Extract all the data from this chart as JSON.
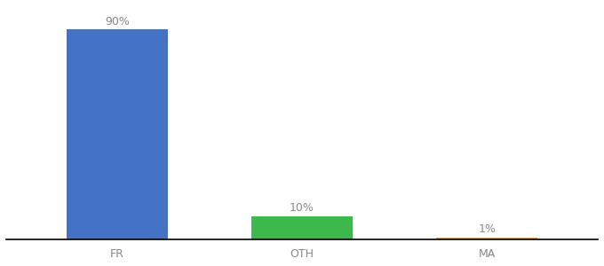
{
  "categories": [
    "FR",
    "OTH",
    "MA"
  ],
  "values": [
    90,
    10,
    1
  ],
  "bar_colors": [
    "#4472c4",
    "#3db84d",
    "#f5a623"
  ],
  "labels": [
    "90%",
    "10%",
    "1%"
  ],
  "ylim": [
    0,
    100
  ],
  "label_fontsize": 9,
  "tick_fontsize": 9,
  "background_color": "#ffffff",
  "bar_width": 0.55,
  "label_color": "#888888"
}
